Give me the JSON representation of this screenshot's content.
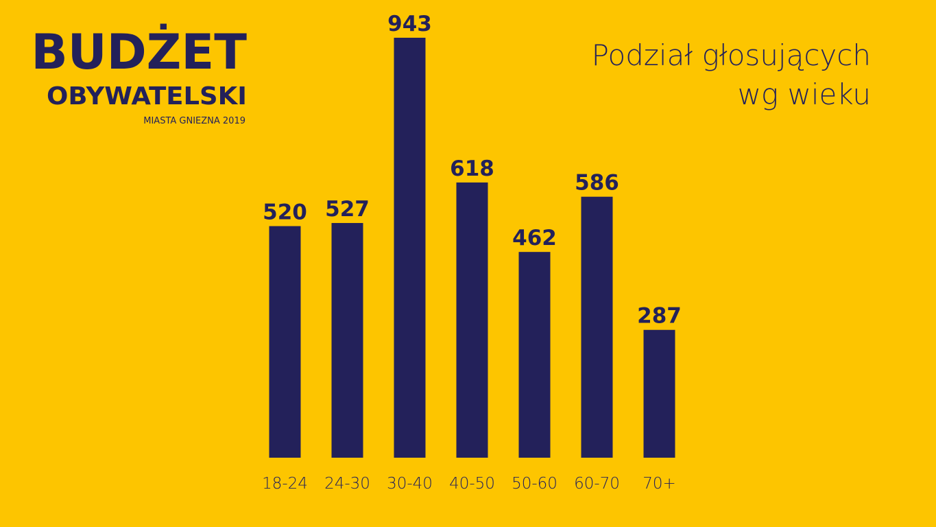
{
  "logo": {
    "line1": "BUDŻET",
    "line2": "OBYWATELSKI",
    "line3": "MIASTA GNIEZNA 2019"
  },
  "chart_data": {
    "type": "bar",
    "title": [
      "Podział głosujących",
      "wg wieku"
    ],
    "categories": [
      "18-24",
      "24-30",
      "30-40",
      "40-50",
      "50-60",
      "60-70",
      "70+"
    ],
    "values": [
      520,
      527,
      943,
      618,
      462,
      586,
      287
    ],
    "color": "#23215a",
    "data_labels": true
  }
}
